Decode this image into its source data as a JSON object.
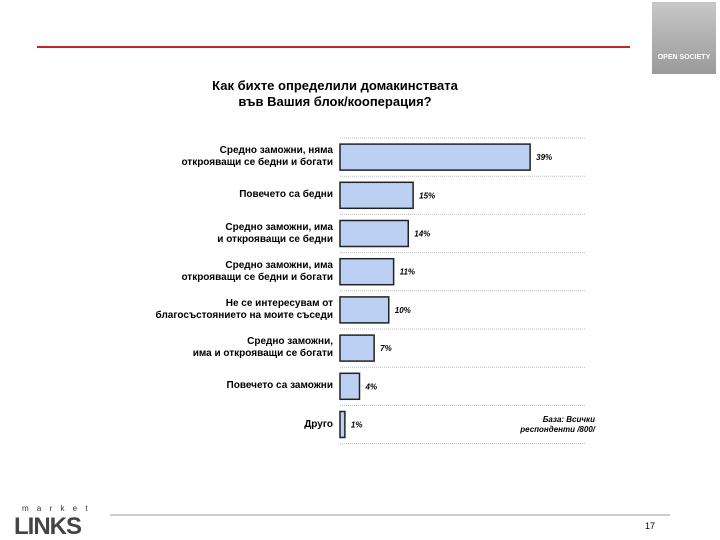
{
  "chart_data": {
    "type": "barh",
    "title": "Как бихте определили домакинствата\nвъв Вашия блок/кооперация?",
    "categories": [
      "Средно заможни, няма\nоткрояващи се бедни и богати",
      "Повечето са бедни",
      "Средно заможни, има\nи открояващи се бедни",
      "Средно заможни, има\nоткрояващи се бедни и богати",
      "Не се интересувам от\nблагосъстоянието на моите съседи",
      "Средно заможни,\nима и открояващи се богати",
      "Повечето са заможни",
      "Друго"
    ],
    "values": [
      39,
      15,
      14,
      11,
      10,
      7,
      4,
      1
    ],
    "value_labels": [
      "39%",
      "15%",
      "14%",
      "11%",
      "10%",
      "7%",
      "4%",
      "1%"
    ],
    "color": "#bcd0f4",
    "xlim": [
      0,
      40
    ],
    "note": "База: Всички\nреспонденти /800/"
  },
  "page_number": "17",
  "logo": {
    "top": "m a r k e t",
    "bottom": "LINKS"
  },
  "corner_logo": "OPEN SOCIETY"
}
